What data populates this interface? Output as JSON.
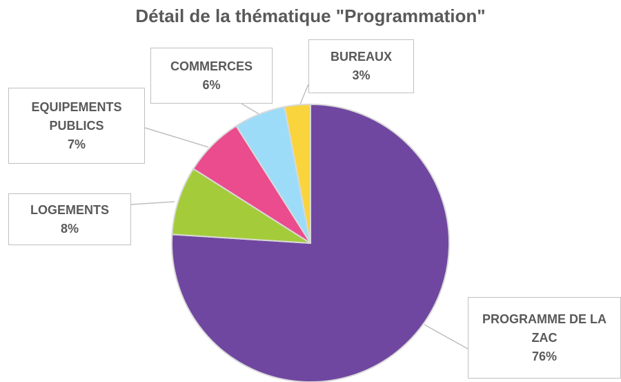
{
  "chart_data": {
    "type": "pie",
    "title": "Détail de la thématique \"Programmation\"",
    "categories": [
      "PROGRAMME DE LA ZAC",
      "LOGEMENTS",
      "EQUIPEMENTS PUBLICS",
      "COMMERCES",
      "BUREAUX"
    ],
    "values": [
      76,
      8,
      7,
      6,
      3
    ],
    "value_labels": [
      "76%",
      "8%",
      "7%",
      "6%",
      "3%"
    ],
    "colors": [
      "#7047a0",
      "#a4cc3a",
      "#ea4c8d",
      "#9ddcf8",
      "#f9d43d"
    ]
  }
}
